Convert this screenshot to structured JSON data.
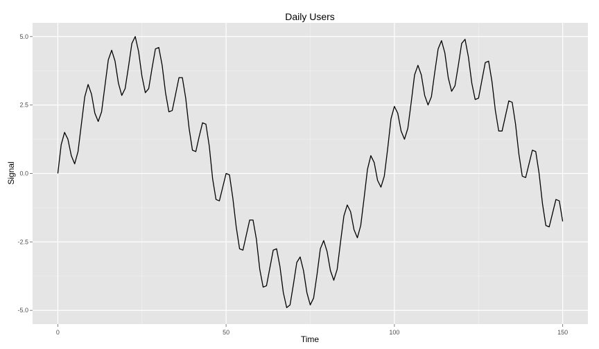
{
  "chart_data": {
    "type": "line",
    "title": "Daily Users",
    "xlabel": "Time",
    "ylabel": "Signal",
    "xlim": [
      -7.5,
      157.5
    ],
    "ylim": [
      -5.5,
      5.5
    ],
    "x_ticks": [
      0,
      50,
      100,
      150
    ],
    "x_tick_labels": [
      "0",
      "50",
      "100",
      "150"
    ],
    "y_ticks": [
      -5.0,
      -2.5,
      0.0,
      2.5,
      5.0
    ],
    "y_tick_labels": [
      "-5.0",
      "-2.5",
      "0.0",
      "2.5",
      "5.0"
    ],
    "grid": true,
    "legend": "none",
    "colors": {
      "panel": "#e5e5e5",
      "grid_major": "#ffffff",
      "grid_minor": "#f2f2f2",
      "line": "#000000",
      "tick": "#7f7f7f"
    },
    "series": [
      {
        "x": [
          0,
          1,
          2,
          3,
          4,
          5,
          6,
          7,
          8,
          9,
          10,
          11,
          12,
          13,
          14,
          15,
          16,
          17,
          18,
          19,
          20,
          21,
          22,
          23,
          24,
          25,
          26,
          27,
          28,
          29,
          30,
          31,
          32,
          33,
          34,
          35,
          36,
          37,
          38,
          39,
          40,
          41,
          42,
          43,
          44,
          45,
          46,
          47,
          48,
          49,
          50,
          51,
          52,
          53,
          54,
          55,
          56,
          57,
          58,
          59,
          60,
          61,
          62,
          63,
          64,
          65,
          66,
          67,
          68,
          69,
          70,
          71,
          72,
          73,
          74,
          75,
          76,
          77,
          78,
          79,
          80,
          81,
          82,
          83,
          84,
          85,
          86,
          87,
          88,
          89,
          90,
          91,
          92,
          93,
          94,
          95,
          96,
          97,
          98,
          99,
          100,
          101,
          102,
          103,
          104,
          105,
          106,
          107,
          108,
          109,
          110,
          111,
          112,
          113,
          114,
          115,
          116,
          117,
          118,
          119,
          120,
          121,
          122,
          123,
          124,
          125,
          126,
          127,
          128,
          129,
          130,
          131,
          132,
          133,
          134,
          135,
          136,
          137,
          138,
          139,
          140,
          141,
          142,
          143,
          144,
          145,
          146,
          147,
          148,
          149,
          150
        ],
        "y": [
          0.0,
          1.05,
          1.5,
          1.25,
          0.65,
          0.35,
          0.8,
          1.8,
          2.8,
          3.25,
          2.9,
          2.2,
          1.9,
          2.25,
          3.2,
          4.15,
          4.5,
          4.1,
          3.3,
          2.85,
          3.1,
          3.9,
          4.75,
          5.0,
          4.45,
          3.55,
          2.95,
          3.1,
          3.85,
          4.55,
          4.6,
          3.95,
          2.95,
          2.25,
          2.3,
          2.9,
          3.5,
          3.5,
          2.75,
          1.65,
          0.85,
          0.8,
          1.35,
          1.85,
          1.8,
          1.0,
          -0.2,
          -0.95,
          -1.0,
          -0.5,
          0.0,
          -0.05,
          -0.9,
          -1.95,
          -2.75,
          -2.8,
          -2.25,
          -1.7,
          -1.7,
          -2.4,
          -3.5,
          -4.15,
          -4.1,
          -3.45,
          -2.8,
          -2.75,
          -3.4,
          -4.35,
          -4.9,
          -4.8,
          -4.05,
          -3.25,
          -3.05,
          -3.55,
          -4.35,
          -4.8,
          -4.55,
          -3.7,
          -2.75,
          -2.45,
          -2.85,
          -3.55,
          -3.9,
          -3.5,
          -2.5,
          -1.55,
          -1.15,
          -1.4,
          -2.05,
          -2.35,
          -1.9,
          -0.9,
          0.15,
          0.65,
          0.4,
          -0.25,
          -0.5,
          -0.1,
          0.9,
          2.0,
          2.45,
          2.2,
          1.55,
          1.25,
          1.65,
          2.6,
          3.6,
          3.95,
          3.6,
          2.85,
          2.5,
          2.8,
          3.7,
          4.55,
          4.85,
          4.4,
          3.5,
          3.0,
          3.2,
          3.95,
          4.75,
          4.9,
          4.25,
          3.3,
          2.7,
          2.75,
          3.4,
          4.05,
          4.1,
          3.35,
          2.3,
          1.55,
          1.55,
          2.1,
          2.65,
          2.6,
          1.8,
          0.7,
          -0.1,
          -0.15,
          0.35,
          0.85,
          0.8,
          0.0,
          -1.1,
          -1.9,
          -1.95,
          -1.45,
          -0.95,
          -1.0,
          -1.75
        ]
      }
    ]
  }
}
